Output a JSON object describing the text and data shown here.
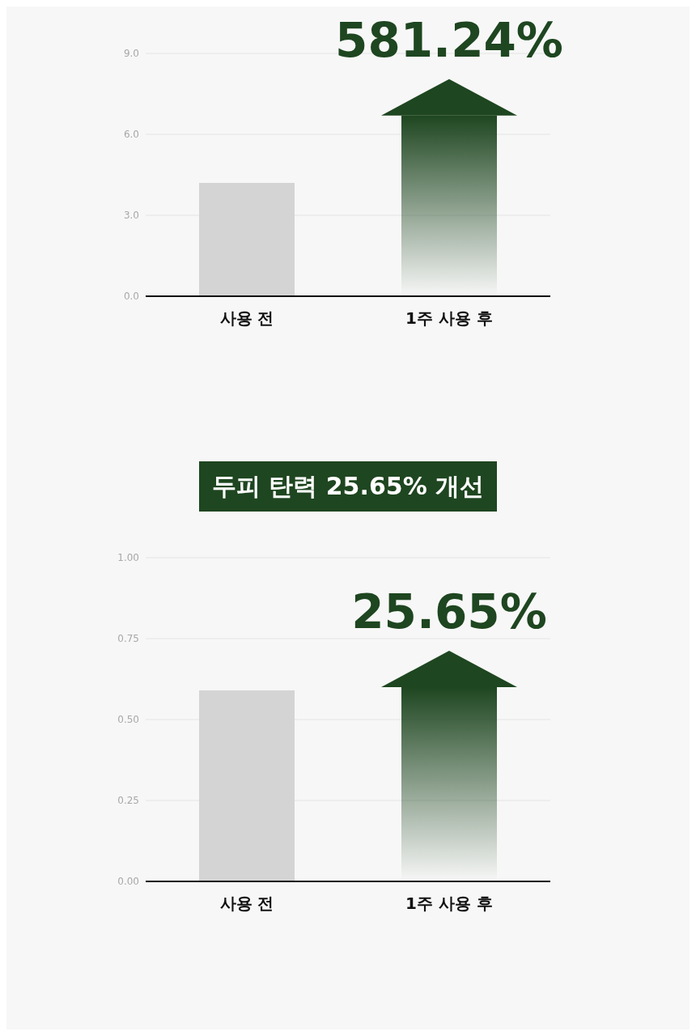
{
  "chart_data": [
    {
      "type": "bar",
      "categories": [
        "사용 전",
        "1주 사용 후"
      ],
      "values": [
        4.2,
        6.7
      ],
      "colors": [
        "#d4d4d4",
        "#1e4620"
      ],
      "ylim": [
        0,
        9
      ],
      "yticks": [
        {
          "value": 0,
          "label": "0.0"
        },
        {
          "value": 3,
          "label": "3.0"
        },
        {
          "value": 6,
          "label": "6.0"
        },
        {
          "value": 9,
          "label": "9.0"
        }
      ],
      "grid": "y",
      "annotations": [
        "581.24%"
      ]
    },
    {
      "type": "bar",
      "title": "두피 탄력 25.65% 개선",
      "categories": [
        "사용 전",
        "1주 사용 후"
      ],
      "values": [
        0.59,
        0.6
      ],
      "colors": [
        "#d4d4d4",
        "#1e4620"
      ],
      "ylim": [
        0,
        1
      ],
      "yticks": [
        {
          "value": 0,
          "label": "0.00"
        },
        {
          "value": 0.25,
          "label": "0.25"
        },
        {
          "value": 0.5,
          "label": "0.50"
        },
        {
          "value": 0.75,
          "label": "0.75"
        },
        {
          "value": 1,
          "label": "1.00"
        }
      ],
      "grid": "y",
      "annotations": [
        "25.65%"
      ]
    }
  ]
}
